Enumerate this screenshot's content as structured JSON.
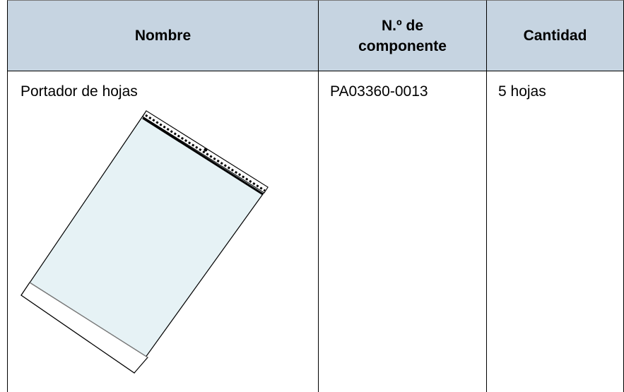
{
  "table": {
    "headers": [
      "Nombre",
      "N.º de componente",
      "Cantidad"
    ],
    "rows": [
      [
        "Portador de hojas",
        "PA03360-0013",
        "5 hojas"
      ]
    ]
  }
}
